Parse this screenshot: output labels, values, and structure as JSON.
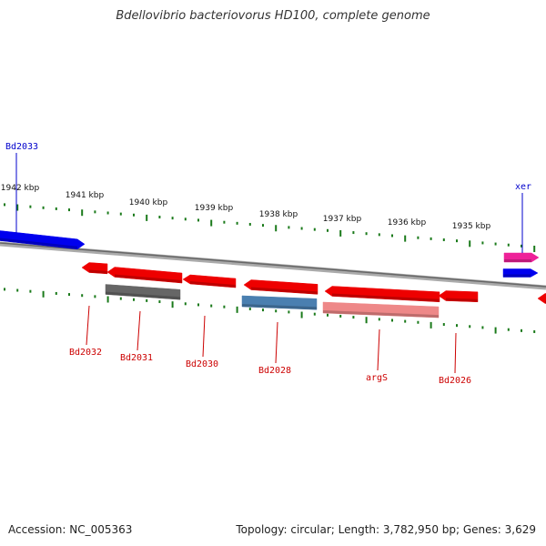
{
  "header": {
    "title": "Bdellovibrio bacteriovorus HD100, complete genome"
  },
  "footer": {
    "accession": "Accession: NC_005363",
    "summary": "Topology: circular; Length: 3,782,950 bp; Genes: 3,629"
  },
  "colors": {
    "plus_strand": "#0000ee",
    "minus_strand": "#ee0000",
    "tick": "#1a7a1a",
    "backbone": "#888888",
    "label_plus": "#0000cc",
    "label_minus": "#cc0000"
  },
  "ruler": {
    "unit": "kbp",
    "labels": [
      "1942 kbp",
      "1941 kbp",
      "1940 kbp",
      "1939 kbp",
      "1938 kbp",
      "1937 kbp",
      "1936 kbp",
      "1935 kbp"
    ]
  },
  "genes": [
    {
      "name": "Bd2033",
      "strand": "+",
      "color": "#0000ee",
      "labeled": true
    },
    {
      "name": "xer",
      "strand": "+",
      "color": "#ee2299",
      "labeled": true
    },
    {
      "name": "",
      "strand": "+",
      "color": "#0000ee",
      "labeled": false
    },
    {
      "name": "Bd2032",
      "strand": "-",
      "color": "#ee0000",
      "labeled": true
    },
    {
      "name": "Bd2031",
      "strand": "-",
      "color": "#ee0000",
      "labeled": true
    },
    {
      "name": "",
      "strand": "-",
      "color": "#666666",
      "labeled": false
    },
    {
      "name": "Bd2030",
      "strand": "-",
      "color": "#ee0000",
      "labeled": true
    },
    {
      "name": "Bd2028",
      "strand": "-",
      "color": "#ee0000",
      "labeled": true
    },
    {
      "name": "",
      "strand": "-",
      "color": "#4a7fb0",
      "labeled": false
    },
    {
      "name": "argS",
      "strand": "-",
      "color": "#ee0000",
      "labeled": true
    },
    {
      "name": "",
      "strand": "-",
      "color": "#ee8888",
      "labeled": false
    },
    {
      "name": "Bd2026",
      "strand": "-",
      "color": "#ee0000",
      "labeled": true
    },
    {
      "name": "",
      "strand": "-",
      "color": "#ee0000",
      "labeled": false
    }
  ]
}
